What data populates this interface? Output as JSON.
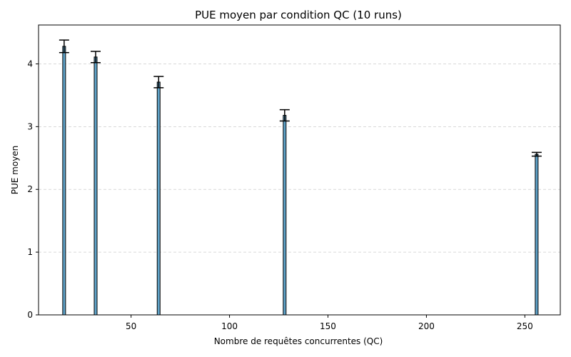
{
  "chart_data": {
    "type": "bar",
    "title": "PUE moyen par condition QC (10 runs)",
    "xlabel": "Nombre de requêtes concurrentes (QC)",
    "ylabel": "PUE moyen",
    "x": [
      16,
      32,
      64,
      128,
      256
    ],
    "values": [
      4.28,
      4.11,
      3.71,
      3.18,
      2.56
    ],
    "error": [
      0.1,
      0.09,
      0.09,
      0.09,
      0.03
    ],
    "xlim": [
      3,
      268
    ],
    "ylim": [
      0,
      4.62
    ],
    "xticks": [
      50,
      100,
      150,
      200,
      250
    ],
    "yticks": [
      0,
      1,
      2,
      3,
      4
    ],
    "grid": "y-dashed",
    "colors": {
      "bar_fill": "#5fa3c9",
      "bar_edge": "#000000",
      "grid": "#cccccc"
    }
  }
}
